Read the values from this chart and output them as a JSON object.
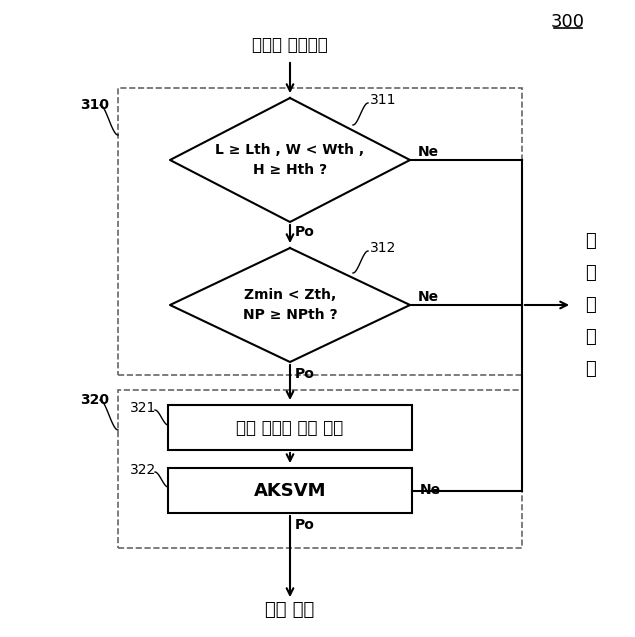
{
  "title_number": "300",
  "top_label": "라이다 클러스터",
  "label_310": "310",
  "label_311": "311",
  "label_312": "312",
  "label_320": "320",
  "label_321": "321",
  "label_322": "322",
  "diamond1_text": "L ≥ Lth , W < Wth ,\nH ≥ Hth ?",
  "diamond2_text": "Zmin < Zth,\nNP ≥ NPth ?",
  "box1_text": "부분 공분산 피쳐 추출",
  "box2_text": "AKSVM",
  "bottom_label": "도로 경계",
  "right_label": "비\n도\n로\n경\n계",
  "ne_label": "Ne",
  "po_label": "Po",
  "bg_color": "#ffffff",
  "line_color": "#000000",
  "dashed_line_color": "#666666",
  "text_color": "#000000",
  "font_size_title": 12,
  "font_size_main": 11,
  "font_size_label": 10,
  "font_size_diamond": 10,
  "font_size_box": 12,
  "font_size_right": 13,
  "figw": 6.35,
  "figh": 6.37,
  "dpi": 100
}
